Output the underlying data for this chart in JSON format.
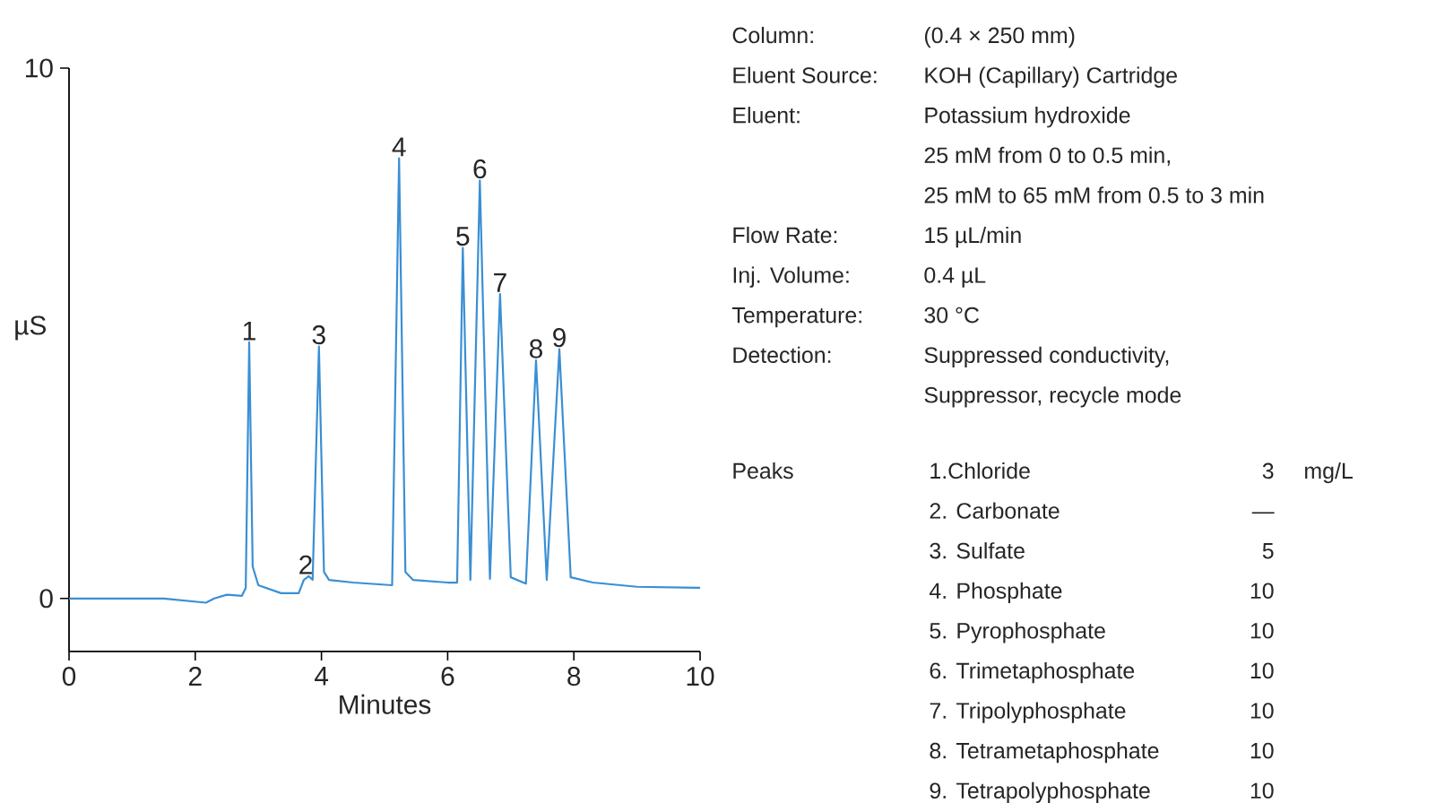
{
  "chart_data": {
    "type": "line",
    "xlabel": "Minutes",
    "ylabel": "µS",
    "xlim": [
      0,
      10
    ],
    "ylim": [
      -1,
      10
    ],
    "xticks": [
      0,
      2,
      4,
      6,
      8,
      10
    ],
    "yticks": [
      0,
      10
    ],
    "x": [
      0,
      1.5,
      2.17,
      2.3,
      2.5,
      2.74,
      2.8,
      2.855,
      2.91,
      3.0,
      3.36,
      3.64,
      3.72,
      3.8,
      3.86,
      3.96,
      4.04,
      4.12,
      4.5,
      5.12,
      5.23,
      5.33,
      5.45,
      6.0,
      6.15,
      6.24,
      6.36,
      6.51,
      6.67,
      6.83,
      7.0,
      7.24,
      7.4,
      7.57,
      7.77,
      7.95,
      8.3,
      9.0,
      10.0
    ],
    "series": [
      {
        "color": "#3a8fd4",
        "values": [
          0,
          0,
          -0.08,
          0,
          0.07,
          0.05,
          0.2,
          4.83,
          0.6,
          0.25,
          0.1,
          0.1,
          0.35,
          0.42,
          0.35,
          4.75,
          0.5,
          0.35,
          0.3,
          0.25,
          8.3,
          0.5,
          0.35,
          0.3,
          0.3,
          6.61,
          0.35,
          7.88,
          0.37,
          5.74,
          0.4,
          0.28,
          4.49,
          0.35,
          4.7,
          0.4,
          0.3,
          0.22,
          0.2
        ]
      }
    ],
    "annotations": [
      {
        "text": "1",
        "x": 2.855,
        "y": 4.83
      },
      {
        "text": "2",
        "x": 3.75,
        "y": 0.42
      },
      {
        "text": "3",
        "x": 3.96,
        "y": 4.75
      },
      {
        "text": "4",
        "x": 5.23,
        "y": 8.3
      },
      {
        "text": "5",
        "x": 6.24,
        "y": 6.61
      },
      {
        "text": "6",
        "x": 6.51,
        "y": 7.88
      },
      {
        "text": "7",
        "x": 6.83,
        "y": 5.74
      },
      {
        "text": "8",
        "x": 7.4,
        "y": 4.49
      },
      {
        "text": "9",
        "x": 7.77,
        "y": 4.7
      },
      "Column:",
      "(0.4 × 250 mm)",
      "Eluent Source:",
      "KOH (Capillary) Cartridge",
      "Eluent:",
      "Potassium hydroxide",
      "25 mM from 0 to 0.5 min,",
      "25 mM to 65 mM from 0.5 to 3 min",
      "Flow Rate:",
      "15 µL/min",
      "Inj. Volume:",
      "0.4 µL",
      "Temperature:",
      "30 °C",
      "Detection:",
      "Suppressed conductivity,",
      "Suppressor, recycle mode",
      "Peaks",
      "1.Chloride",
      "3",
      "mg/L",
      "2. Carbonate",
      "—",
      "3. Sulfate",
      "5",
      "4. Phosphate",
      "10",
      "5. Pyrophosphate",
      "10",
      "6. Trimetaphosphate",
      "10",
      "7. Tripolyphosphate",
      "10",
      "8. Tetrametaphosphate",
      "10",
      "9. Tetrapolyphosphate",
      "10"
    ]
  }
}
